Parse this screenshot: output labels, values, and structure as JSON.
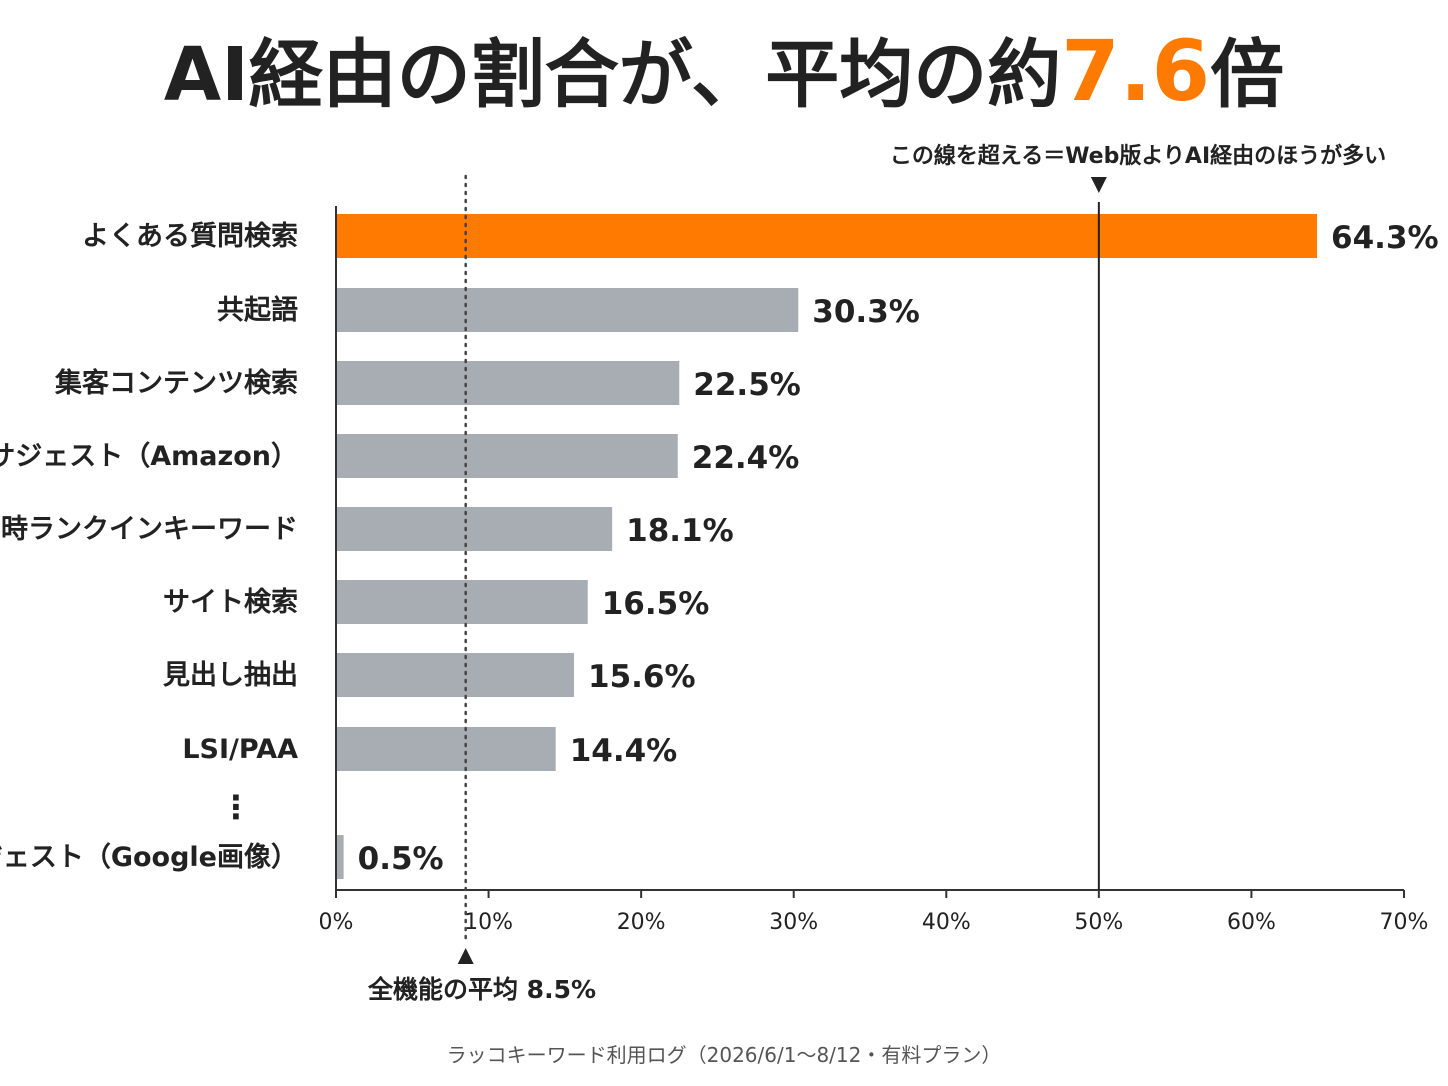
{
  "chart_data": {
    "type": "bar",
    "orientation": "horizontal",
    "title": {
      "prefix": "AI経由の割合が、平均の約",
      "highlight": "7.6",
      "suffix": "倍"
    },
    "categories": [
      "よくある質問検索",
      "共起語",
      "集客コンテンツ検索",
      "サジェスト（Amazon）",
      "同時ランクインキーワード",
      "サイト検索",
      "見出し抽出",
      "LSI/PAA",
      "サジェスト（Google画像）"
    ],
    "values": [
      64.3,
      30.3,
      22.5,
      22.4,
      18.1,
      16.5,
      15.6,
      14.4,
      0.5
    ],
    "value_labels": [
      "64.3%",
      "30.3%",
      "22.5%",
      "22.4%",
      "18.1%",
      "16.5%",
      "15.6%",
      "14.4%",
      "0.5%"
    ],
    "highlight_index": 0,
    "gap_marker": "⋮",
    "x_ticks": [
      0,
      10,
      20,
      30,
      40,
      50,
      60,
      70
    ],
    "x_tick_labels": [
      "0%",
      "10%",
      "20%",
      "30%",
      "40%",
      "50%",
      "60%",
      "70%"
    ],
    "xlim": [
      0,
      70
    ],
    "grid": false,
    "reference_lines": [
      {
        "value": 8.5,
        "style": "dotted",
        "label": "全機能の平均 8.5%",
        "label_position": "bottom"
      },
      {
        "value": 50,
        "style": "solid",
        "label": "この線を超える＝Web版よりAI経由のほうが多い",
        "label_position": "top"
      }
    ],
    "source": "ラッコキーワード利用ログ（2026/6/1〜8/12・有料プラン）"
  },
  "colors": {
    "highlight": "#FF7A00",
    "bar": "#A8ADB3",
    "text": "#222222",
    "axis": "#333333",
    "source_text": "#555555"
  }
}
